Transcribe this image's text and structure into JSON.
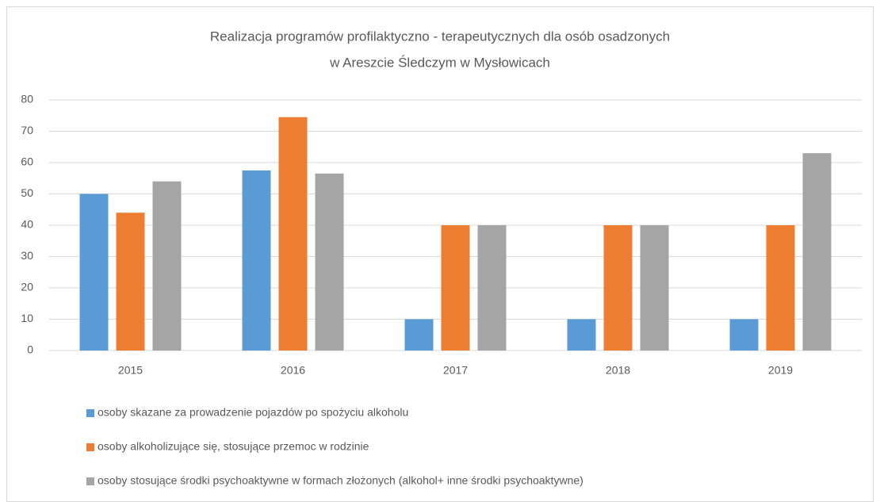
{
  "chart_data": {
    "type": "bar",
    "title": [
      "Realizacja programów profilaktyczno - terapeutycznych dla osób osadzonych",
      "w Areszcie Śledczym w Mysłowicach"
    ],
    "categories": [
      "2015",
      "2016",
      "2017",
      "2018",
      "2019"
    ],
    "series": [
      {
        "name": "osoby skazane za prowadzenie pojazdów po spożyciu alkoholu",
        "color": "#5b9bd5",
        "values": [
          50,
          57.5,
          10,
          10,
          10
        ]
      },
      {
        "name": "osoby alkoholizujące się, stosujące przemoc w rodzinie",
        "color": "#ed7d31",
        "values": [
          44,
          74.5,
          40,
          40,
          40
        ]
      },
      {
        "name": "osoby stosujące środki psychoaktywne w formach złożonych (alkohol+ inne środki psychoaktywne)",
        "color": "#a5a5a5",
        "values": [
          54,
          56.5,
          40,
          40,
          63
        ]
      }
    ],
    "ylim": [
      0,
      80
    ],
    "yticks": [
      0,
      10,
      20,
      30,
      40,
      50,
      60,
      70,
      80
    ],
    "grid": true,
    "legend": "bottom"
  }
}
